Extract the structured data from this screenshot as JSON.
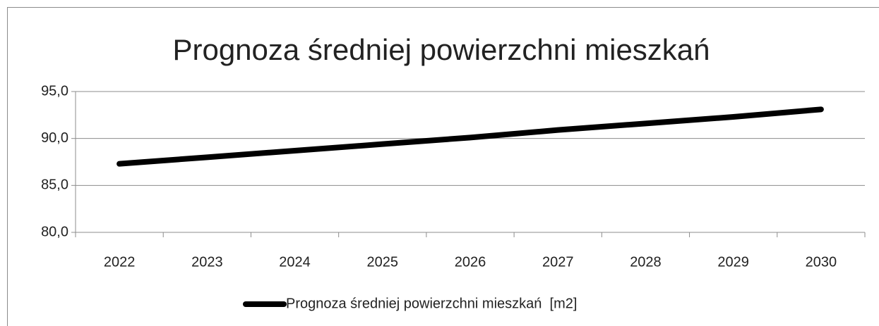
{
  "chart_data": {
    "type": "line",
    "title": "Prognoza średniej powierzchni mieszkań",
    "categories": [
      "2022",
      "2023",
      "2024",
      "2025",
      "2026",
      "2027",
      "2028",
      "2029",
      "2030"
    ],
    "series": [
      {
        "name": "Prognoza średniej powierzchni mieszkań  [m2]",
        "color": "#000000",
        "values": [
          87.3,
          88.0,
          88.7,
          89.4,
          90.1,
          90.9,
          91.6,
          92.3,
          93.1
        ]
      }
    ],
    "ylim": [
      80,
      95
    ],
    "yticks": [
      {
        "value": 80,
        "label": "80,0"
      },
      {
        "value": 85,
        "label": "85,0"
      },
      {
        "value": 90,
        "label": "90,0"
      },
      {
        "value": 95,
        "label": "95,0"
      }
    ],
    "grid": true,
    "legend": "bottom"
  }
}
